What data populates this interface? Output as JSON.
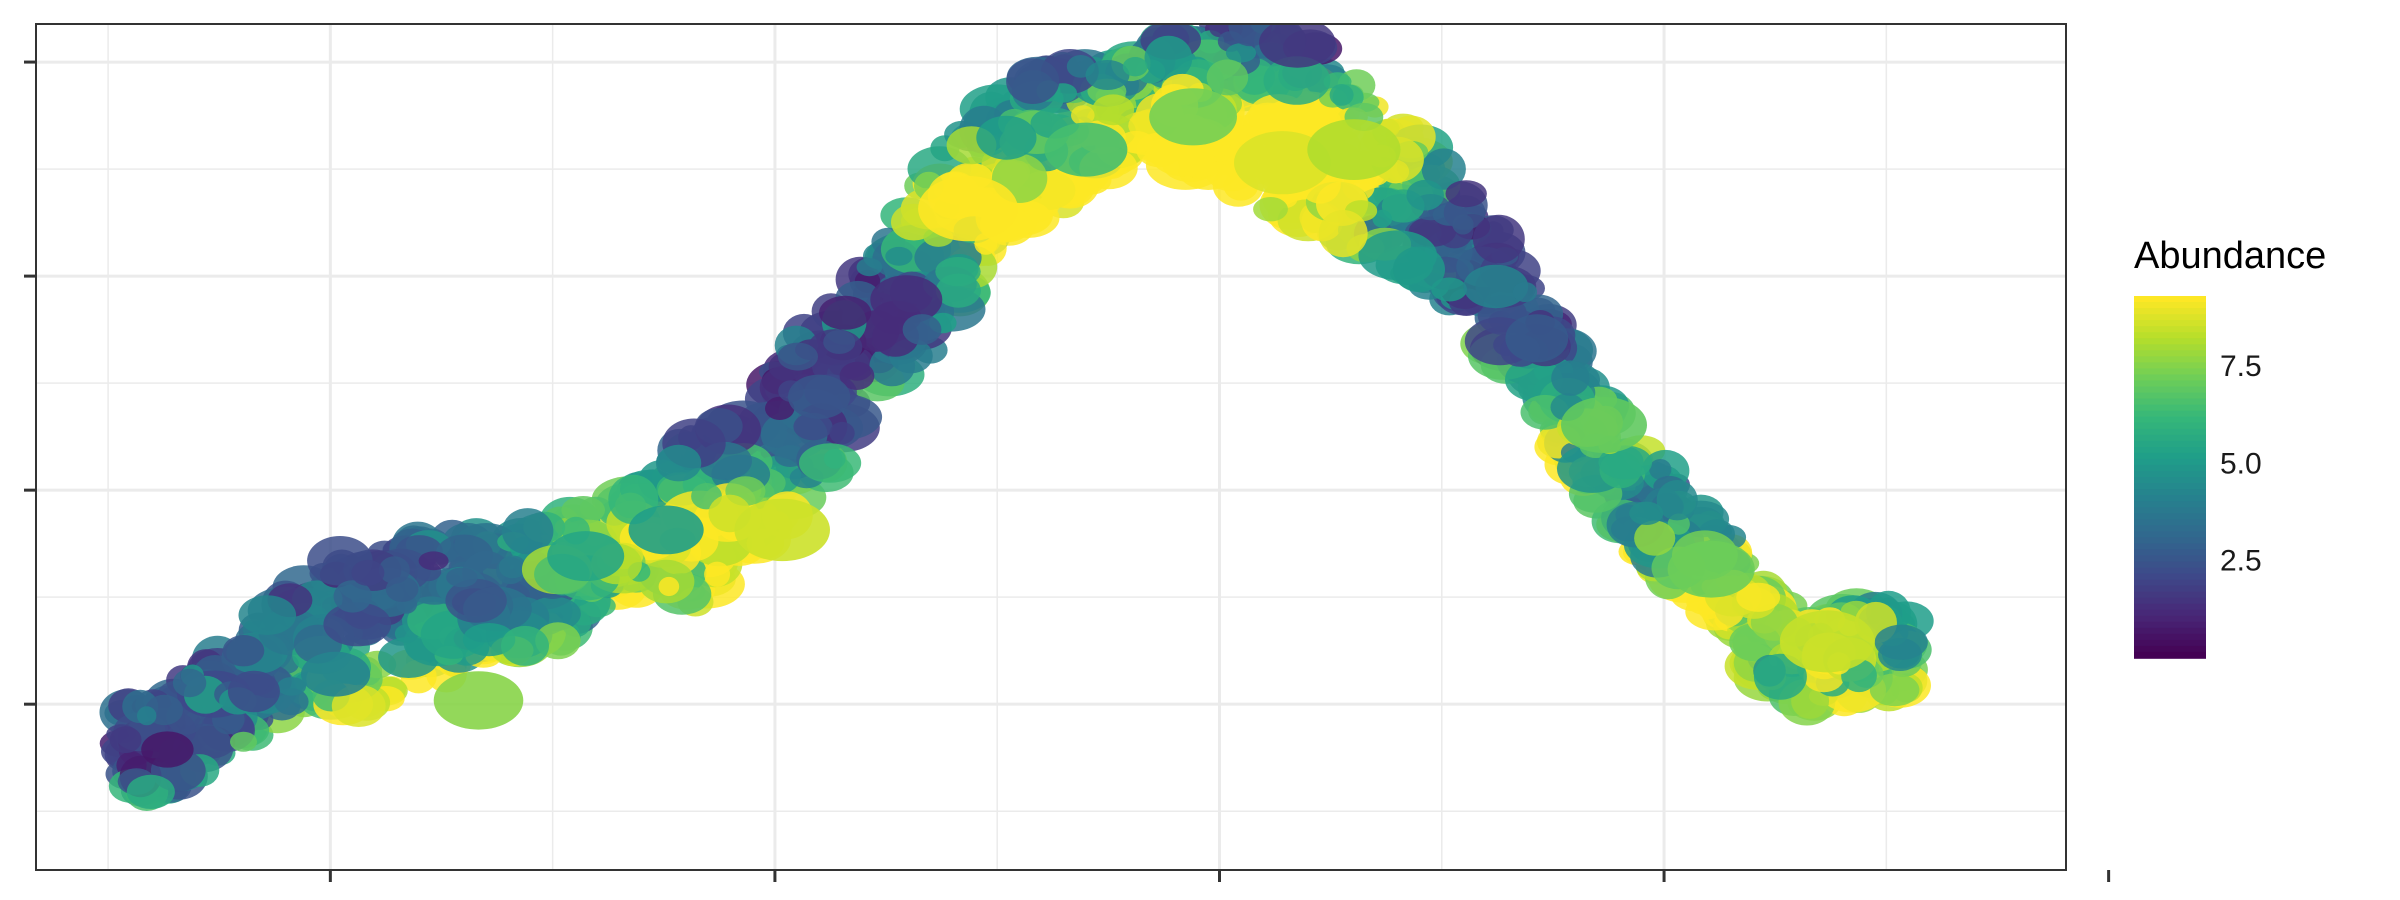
{
  "chart_data": {
    "type": "heatmap",
    "title": "",
    "xlabel": "",
    "ylabel": "",
    "grid": true,
    "legend": {
      "title": "Abundance",
      "placement": "right",
      "range": [
        0,
        9.3
      ],
      "ticks": [
        {
          "value": 7.5,
          "label": "7.5"
        },
        {
          "value": 5.0,
          "label": "5.0"
        },
        {
          "value": 2.5,
          "label": "2.5"
        }
      ],
      "colors": [
        "#440154",
        "#482777",
        "#3e4989",
        "#31688e",
        "#26828e",
        "#1f9e89",
        "#35b779",
        "#6ece58",
        "#b5de2b",
        "#fde725"
      ]
    },
    "x_ticks": 5,
    "y_ticks": 4,
    "values": {
      "spine": [
        [
          0.0,
          0.7,
          1.3
        ],
        [
          0.03,
          0.8,
          1.8
        ],
        [
          0.06,
          1.1,
          1.5
        ],
        [
          0.09,
          1.4,
          2.2
        ],
        [
          0.12,
          1.6,
          2.9
        ],
        [
          0.15,
          1.7,
          3.5
        ],
        [
          0.18,
          1.8,
          2.6
        ],
        [
          0.21,
          1.9,
          2.0
        ],
        [
          0.24,
          2.0,
          2.4
        ],
        [
          0.27,
          2.2,
          1.6
        ],
        [
          0.3,
          2.4,
          2.1
        ],
        [
          0.32,
          2.5,
          3.8
        ],
        [
          0.34,
          2.7,
          2.7
        ],
        [
          0.36,
          2.9,
          3.3
        ],
        [
          0.38,
          3.2,
          3.9
        ],
        [
          0.4,
          3.5,
          3.2
        ],
        [
          0.42,
          3.9,
          2.9
        ],
        [
          0.435,
          4.2,
          2.6
        ],
        [
          0.455,
          4.5,
          4.4
        ],
        [
          0.475,
          4.9,
          3.1
        ],
        [
          0.495,
          5.2,
          2.3
        ],
        [
          0.52,
          5.4,
          3.0
        ],
        [
          0.545,
          5.5,
          1.9
        ],
        [
          0.575,
          5.65,
          1.4
        ],
        [
          0.61,
          5.75,
          3.6
        ],
        [
          0.64,
          5.6,
          4.5
        ],
        [
          0.67,
          5.4,
          3.7
        ],
        [
          0.7,
          5.1,
          3.3
        ],
        [
          0.73,
          4.8,
          2.6
        ],
        [
          0.76,
          4.4,
          2.2
        ],
        [
          0.79,
          3.8,
          2.0
        ],
        [
          0.82,
          3.1,
          1.9
        ],
        [
          0.85,
          2.6,
          1.8
        ],
        [
          0.88,
          2.3,
          1.6
        ],
        [
          0.9,
          2.0,
          1.4
        ],
        [
          0.92,
          1.6,
          1.3
        ],
        [
          0.945,
          1.4,
          1.2
        ],
        [
          0.97,
          1.5,
          1.1
        ]
      ],
      "hotspots": [
        [
          0.474,
          4.85,
          9.3
        ],
        [
          0.37,
          2.4,
          8.6
        ],
        [
          0.65,
          5.2,
          8.8
        ],
        [
          0.69,
          5.3,
          8.2
        ],
        [
          0.955,
          1.55,
          8.5
        ],
        [
          0.2,
          1.1,
          7.6
        ],
        [
          0.83,
          3.2,
          7.0
        ],
        [
          0.6,
          5.55,
          7.3
        ],
        [
          0.54,
          5.3,
          6.5
        ],
        [
          0.89,
          2.1,
          7.2
        ],
        [
          0.26,
          2.2,
          5.5
        ],
        [
          0.305,
          2.4,
          5.2
        ],
        [
          0.12,
          1.3,
          4.2
        ]
      ]
    }
  }
}
